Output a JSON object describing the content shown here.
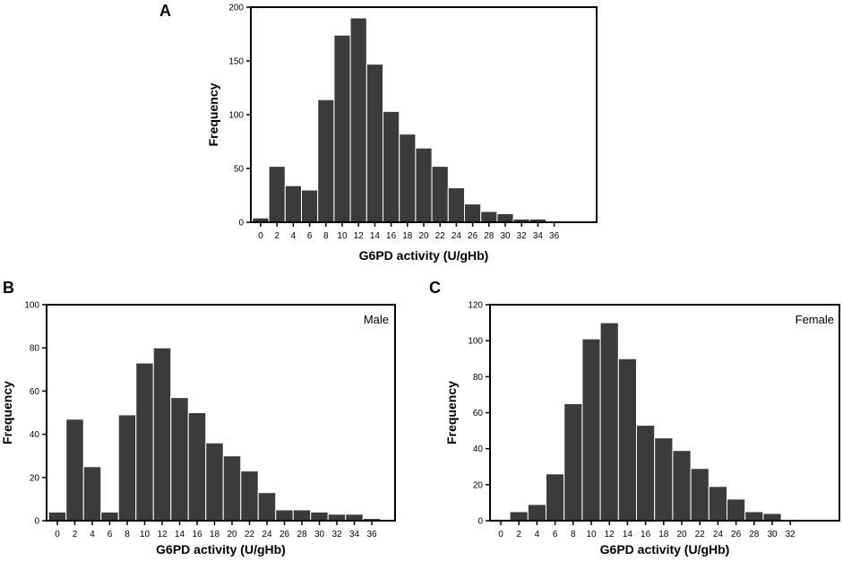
{
  "chart_data": [
    {
      "type": "bar",
      "panel": "A",
      "annotation": "",
      "xlabel": "G6PD activity (U/gHb)",
      "ylabel": "Frequency",
      "ylim": [
        0,
        200
      ],
      "yticks": [
        0,
        50,
        100,
        150,
        200
      ],
      "categories": [
        "0",
        "2",
        "4",
        "6",
        "8",
        "10",
        "12",
        "14",
        "16",
        "18",
        "20",
        "22",
        "24",
        "26",
        "28",
        "30",
        "32",
        "34",
        "36"
      ],
      "values": [
        4,
        52,
        34,
        30,
        114,
        174,
        190,
        147,
        103,
        82,
        69,
        52,
        32,
        17,
        10,
        8,
        3,
        3,
        0
      ]
    },
    {
      "type": "bar",
      "panel": "B",
      "annotation": "Male",
      "xlabel": "G6PD activity (U/gHb)",
      "ylabel": "Frequency",
      "ylim": [
        0,
        100
      ],
      "yticks": [
        0,
        20,
        40,
        60,
        80,
        100
      ],
      "categories": [
        "0",
        "2",
        "4",
        "6",
        "8",
        "10",
        "12",
        "14",
        "16",
        "18",
        "20",
        "22",
        "24",
        "26",
        "28",
        "30",
        "32",
        "34",
        "36"
      ],
      "values": [
        4,
        47,
        25,
        4,
        49,
        73,
        80,
        57,
        50,
        36,
        30,
        23,
        13,
        5,
        5,
        4,
        3,
        3,
        1
      ]
    },
    {
      "type": "bar",
      "panel": "C",
      "annotation": "Female",
      "xlabel": "G6PD activity (U/gHb)",
      "ylabel": "Frequency",
      "ylim": [
        0,
        120
      ],
      "yticks": [
        0,
        20,
        40,
        60,
        80,
        100,
        120
      ],
      "categories": [
        "0",
        "2",
        "4",
        "6",
        "8",
        "10",
        "12",
        "14",
        "16",
        "18",
        "20",
        "22",
        "24",
        "26",
        "28",
        "30",
        "32"
      ],
      "values": [
        0,
        5,
        9,
        26,
        65,
        101,
        110,
        90,
        53,
        46,
        39,
        29,
        19,
        12,
        5,
        4,
        0
      ]
    }
  ]
}
